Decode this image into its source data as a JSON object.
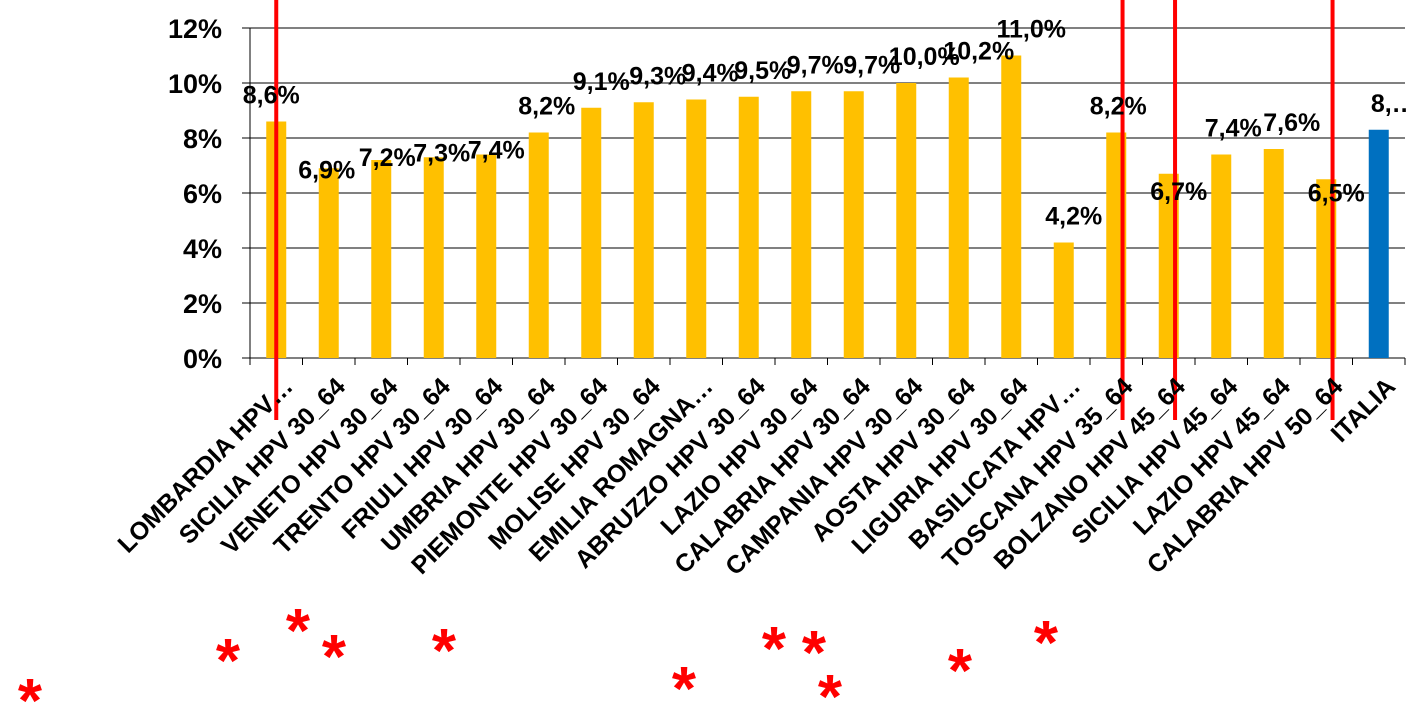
{
  "chart_data": {
    "type": "bar",
    "categories": [
      "LOMBARDIA HPV…",
      "SICILIA HPV 30_64",
      "VENETO HPV 30_64",
      "TRENTO HPV 30_64",
      "FRIULI HPV 30_64",
      "UMBRIA HPV 30_64",
      "PIEMONTE HPV 30_64",
      "MOLISE HPV 30_64",
      "EMILIA ROMAGNA…",
      "ABRUZZO HPV 30_64",
      "LAZIO HPV 30_64",
      "CALABRIA HPV 30_64",
      "CAMPANIA HPV 30_64",
      "AOSTA HPV 30_64",
      "LIGURIA HPV 30_64",
      "BASILICATA HPV…",
      "TOSCANA HPV 35_64",
      "BOLZANO HPV 45_64",
      "SICILIA HPV 45_64",
      "LAZIO HPV 45_64",
      "CALABRIA HPV 50_64",
      "ITALIA"
    ],
    "values": [
      8.6,
      6.9,
      7.2,
      7.3,
      7.4,
      8.2,
      9.1,
      9.3,
      9.4,
      9.5,
      9.7,
      9.7,
      10.0,
      10.2,
      11.0,
      4.2,
      8.2,
      6.7,
      7.4,
      7.6,
      6.5,
      8.3
    ],
    "data_labels": [
      "8,6%",
      "6,9%",
      "7,2%",
      "7,3%",
      "7,4%",
      "8,2%",
      "9,1%",
      "9,3%",
      "9,4%",
      "9,5%",
      "9,7%",
      "9,7%",
      "10,0%",
      "10,2%",
      "11,0%",
      "4,2%",
      "8,2%",
      "6,7%",
      "7,4%",
      "7,6%",
      "6,5%",
      "8,…"
    ],
    "yticks": [
      "0%",
      "2%",
      "4%",
      "6%",
      "8%",
      "10%",
      "12%"
    ],
    "ylim": [
      0,
      12
    ],
    "grid": true,
    "legend": "none",
    "title": "",
    "xlabel": "",
    "ylabel": "",
    "colors": {
      "regional": "#ffc000",
      "national": "#0070c0",
      "marker": "#ff0000"
    },
    "highlight_category": "ITALIA",
    "marker_lines_after_index": [
      0,
      16,
      17,
      20
    ],
    "asterisk_symbol": "*"
  }
}
